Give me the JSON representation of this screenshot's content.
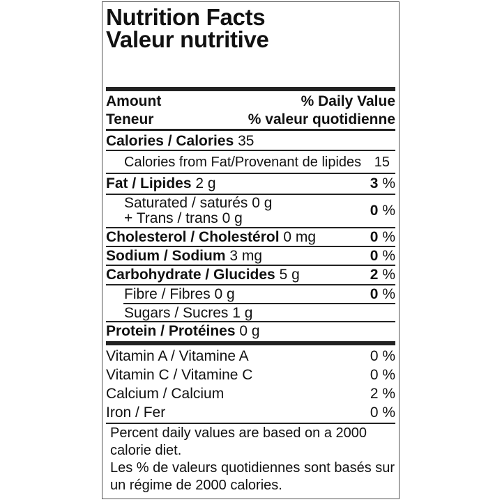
{
  "title_en": "Nutrition Facts",
  "title_fr": "Valeur nutritive",
  "header": {
    "amount": "Amount",
    "teneur": "Teneur",
    "dv": "% Daily Value",
    "dv_fr": "% valeur quotidienne"
  },
  "calories": {
    "label": "Calories / Calories",
    "value": "35"
  },
  "calories_fat": {
    "label": "Calories from Fat/Provenant de lipides",
    "value": "15"
  },
  "nutrients": [
    {
      "label": "Fat / Lipides",
      "amount": "2 g",
      "dv": "3",
      "unit": "%"
    },
    {
      "label": "Saturated / saturés 0 g",
      "label2": "+ Trans / trans 0 g",
      "dv": "0",
      "unit": "%"
    },
    {
      "label": "Cholesterol / Cholestérol",
      "amount": "0 mg",
      "dv": "0",
      "unit": "%"
    },
    {
      "label": "Sodium / Sodium",
      "amount": "3 mg",
      "dv": "0",
      "unit": "%"
    },
    {
      "label": "Carbohydrate / Glucides",
      "amount": "5 g",
      "dv": "2",
      "unit": "%"
    },
    {
      "label": "Fibre / Fibres 0 g",
      "dv": "0",
      "unit": "%"
    },
    {
      "label": "Sugars / Sucres 1 g"
    },
    {
      "label": "Protein / Protéines",
      "amount": "0 g"
    }
  ],
  "vitamins": [
    {
      "label": "Vitamin A / Vitamine A",
      "dv": "0 %"
    },
    {
      "label": "Vitamin C / Vitamine C",
      "dv": "0 %"
    },
    {
      "label": "Calcium / Calcium",
      "dv": "2 %"
    },
    {
      "label": "Iron / Fer",
      "dv": "0 %"
    }
  ],
  "footnote": [
    "Percent daily values are based on a 2000",
    "calorie diet.",
    "Les % de valeurs quotidiennes sont basés sur",
    "un régime de 2000 calories."
  ]
}
